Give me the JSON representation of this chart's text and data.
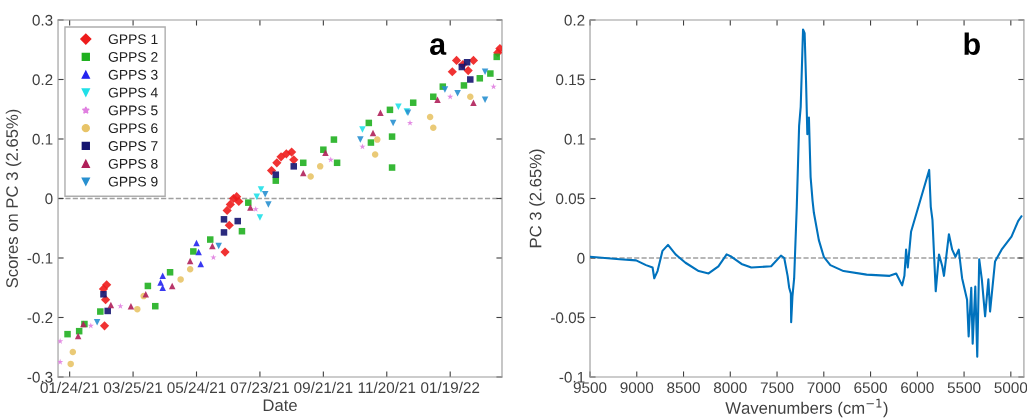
{
  "chart_data": [
    {
      "type": "scatter",
      "xlabel": "Date",
      "ylabel": "Scores on PC 3 (2.65%)",
      "annotations": [
        "a"
      ],
      "legend": "top left",
      "grid": false,
      "xlim": [
        "2021-01-13",
        "2022-03-09"
      ],
      "ylim": [
        -0.3,
        0.3
      ],
      "yticks": [
        -0.3,
        -0.2,
        -0.1,
        0,
        0.1,
        0.2,
        0.3
      ],
      "xticks": [
        {
          "value": "2021-01-24",
          "label": "01/24/21"
        },
        {
          "value": "2021-03-25",
          "label": "03/25/21"
        },
        {
          "value": "2021-05-24",
          "label": "05/24/21"
        },
        {
          "value": "2021-07-23",
          "label": "07/23/21"
        },
        {
          "value": "2021-09-21",
          "label": "09/21/21"
        },
        {
          "value": "2021-11-20",
          "label": "11/20/21"
        },
        {
          "value": "2022-01-19",
          "label": "01/19/22"
        }
      ],
      "ref_lines": [
        {
          "axis": "y",
          "value": 0,
          "color": "#a0a0a0",
          "line_style": "dashed"
        }
      ],
      "series": [
        {
          "name": "GPPS 1",
          "color": "#ee1c1c",
          "marker": "diamond",
          "x": [
            "2021-02-25",
            "2021-02-28",
            "2021-02-27",
            "2021-02-26",
            "2021-06-20",
            "2021-06-24",
            "2021-06-22",
            "2021-06-25",
            "2021-06-28",
            "2021-07-01",
            "2021-07-03",
            "2021-08-03",
            "2021-08-08",
            "2021-08-12",
            "2021-08-17",
            "2021-08-22",
            "2021-08-24",
            "2022-01-21",
            "2022-01-25",
            "2022-01-31",
            "2022-02-10",
            "2022-02-05",
            "2022-03-05",
            "2022-03-07"
          ],
          "values": [
            -0.152,
            -0.145,
            -0.17,
            -0.214,
            -0.09,
            -0.045,
            -0.02,
            -0.01,
            0.0,
            0.003,
            -0.005,
            0.047,
            0.06,
            0.07,
            0.075,
            0.078,
            0.065,
            0.213,
            0.232,
            0.225,
            0.232,
            0.215,
            0.245,
            0.252
          ]
        },
        {
          "name": "GPPS 2",
          "color": "#20b020",
          "marker": "square",
          "x": [
            "2021-01-22",
            "2021-02-02",
            "2021-02-07",
            "2021-02-22",
            "2021-04-08",
            "2021-04-15",
            "2021-04-29",
            "2021-05-21",
            "2021-06-06",
            "2021-07-06",
            "2021-07-12",
            "2021-08-07",
            "2021-09-02",
            "2021-09-21",
            "2021-10-01",
            "2021-10-04",
            "2021-11-03",
            "2021-11-05",
            "2021-11-23",
            "2021-11-25",
            "2021-11-25",
            "2021-12-15",
            "2022-01-03",
            "2022-01-12",
            "2022-02-01",
            "2022-02-16",
            "2022-02-26",
            "2022-03-04"
          ],
          "values": [
            -0.228,
            -0.223,
            -0.211,
            -0.19,
            -0.147,
            -0.181,
            -0.124,
            -0.089,
            -0.069,
            -0.055,
            -0.007,
            0.03,
            0.06,
            0.082,
            0.099,
            0.06,
            0.127,
            0.094,
            0.149,
            0.052,
            0.104,
            0.161,
            0.171,
            0.188,
            0.19,
            0.202,
            0.21,
            0.238
          ]
        },
        {
          "name": "GPPS 3",
          "color": "#2424f0",
          "marker": "triangle",
          "x": [
            "2021-04-22",
            "2021-04-22",
            "2021-04-20",
            "2021-05-24",
            "2021-05-26",
            "2021-05-28"
          ],
          "values": [
            -0.13,
            -0.15,
            -0.141,
            -0.075,
            -0.09,
            -0.11
          ]
        },
        {
          "name": "GPPS 4",
          "color": "#20e0e8",
          "marker": "triangle_down",
          "x": [
            "2021-07-23",
            "2021-07-20",
            "2021-07-24",
            "2021-10-28",
            "2021-12-01",
            "2021-12-09"
          ],
          "values": [
            -0.032,
            0.003,
            0.015,
            0.116,
            0.154,
            0.146
          ]
        },
        {
          "name": "GPPS 5",
          "color": "#e080e0",
          "marker": "star",
          "x": [
            "2021-01-15",
            "2021-01-15",
            "2021-02-13",
            "2021-03-13",
            "2021-06-09",
            "2021-07-19",
            "2021-09-28",
            "2021-10-28",
            "2021-12-12",
            "2022-01-19",
            "2022-03-01"
          ],
          "values": [
            -0.24,
            -0.275,
            -0.214,
            -0.181,
            -0.099,
            -0.018,
            0.065,
            0.087,
            0.127,
            0.171,
            0.188
          ]
        },
        {
          "name": "GPPS 6",
          "color": "#e8c468",
          "marker": "circle",
          "x": [
            "2021-01-27",
            "2021-01-25",
            "2021-03-29",
            "2021-04-04",
            "2021-05-09",
            "2021-05-18",
            "2021-09-09",
            "2021-09-18",
            "2021-11-11",
            "2021-11-09",
            "2021-12-31",
            "2022-01-03",
            "2022-02-07"
          ],
          "values": [
            -0.258,
            -0.278,
            -0.186,
            -0.164,
            -0.136,
            -0.119,
            0.037,
            0.054,
            0.099,
            0.074,
            0.137,
            0.119,
            0.171
          ]
        },
        {
          "name": "GPPS 7",
          "color": "#141470",
          "marker": "square",
          "x": [
            "2021-02-25",
            "2021-03-01",
            "2021-06-19",
            "2021-06-19",
            "2021-07-02",
            "2021-08-07",
            "2021-08-24",
            "2022-01-30",
            "2022-02-04",
            "2022-02-07"
          ],
          "values": [
            -0.161,
            -0.189,
            -0.035,
            -0.057,
            -0.038,
            0.04,
            0.054,
            0.221,
            0.229,
            0.2
          ]
        },
        {
          "name": "GPPS 8",
          "color": "#b0205a",
          "marker": "triangle",
          "x": [
            "2021-02-01",
            "2021-02-06",
            "2021-03-04",
            "2021-03-23",
            "2021-04-06",
            "2021-05-01",
            "2021-05-18",
            "2021-06-08",
            "2021-07-14",
            "2021-09-02",
            "2021-09-23",
            "2021-11-07",
            "2021-11-14",
            "2022-01-07",
            "2022-02-10"
          ],
          "values": [
            -0.231,
            -0.211,
            -0.179,
            -0.181,
            -0.161,
            -0.147,
            -0.105,
            -0.08,
            -0.015,
            0.043,
            0.077,
            0.11,
            0.144,
            0.166,
            0.161
          ]
        },
        {
          "name": "GPPS 9",
          "color": "#2890d0",
          "marker": "triangle_down",
          "x": [
            "2021-02-19",
            "2021-06-14",
            "2021-07-31",
            "2021-07-28",
            "2021-10-26",
            "2021-11-26",
            "2021-12-10",
            "2022-01-14",
            "2022-01-26",
            "2022-02-21",
            "2022-02-21"
          ],
          "values": [
            -0.208,
            -0.08,
            -0.01,
            0.007,
            0.099,
            0.127,
            0.144,
            0.183,
            0.177,
            0.166,
            0.213
          ]
        }
      ]
    },
    {
      "type": "line",
      "xlabel": "Wavenumbers (cm$^{−1}$)",
      "ylabel": "PC 3 (2.65%)",
      "annotations": [
        "b"
      ],
      "grid": false,
      "xlim": [
        9500,
        4860
      ],
      "xticks": [
        9500,
        9000,
        8500,
        8000,
        7500,
        7000,
        6500,
        6000,
        5500,
        5000
      ],
      "ylim": [
        -0.1,
        0.2
      ],
      "yticks": [
        -0.1,
        -0.05,
        0,
        0.05,
        0.1,
        0.15,
        0.2
      ],
      "ref_lines": [
        {
          "axis": "y",
          "value": 0,
          "color": "#a0a0a0",
          "line_style": "dashed"
        }
      ],
      "series": [
        {
          "color": "#0072bd",
          "line_style": "solid",
          "marker": "none",
          "x": [
            9500,
            9183,
            9007,
            8901,
            8831,
            8813,
            8778,
            8725,
            8666,
            8585,
            8479,
            8338,
            8232,
            8127,
            8039,
            7986,
            7880,
            7775,
            7563,
            7458,
            7423,
            7387,
            7370,
            7352,
            7349,
            7335,
            7317,
            7289,
            7264,
            7247,
            7222,
            7205,
            7190,
            7176,
            7159,
            7141,
            7120,
            7106,
            7053,
            7000,
            6930,
            6789,
            6542,
            6296,
            6226,
            6162,
            6138,
            6120,
            6102,
            6067,
            5873,
            5856,
            5838,
            5803,
            5768,
            5733,
            5715,
            5662,
            5627,
            5592,
            5557,
            5521,
            5468,
            5451,
            5423,
            5408,
            5380,
            5359,
            5338,
            5310,
            5275,
            5240,
            5222,
            5169,
            5099,
            4993,
            4922,
            4887
          ],
          "values": [
            0.001,
            -0.001,
            -0.002,
            -0.006,
            -0.008,
            -0.017,
            -0.011,
            0.006,
            0.011,
            0.003,
            -0.004,
            -0.011,
            -0.013,
            -0.007,
            0.003,
            0.001,
            -0.005,
            -0.008,
            -0.007,
            0.002,
            0.0,
            -0.015,
            -0.025,
            -0.03,
            -0.054,
            -0.032,
            -0.017,
            0.043,
            0.111,
            0.127,
            0.192,
            0.189,
            0.149,
            0.104,
            0.118,
            0.068,
            0.048,
            0.038,
            0.015,
            0.001,
            -0.006,
            -0.011,
            -0.014,
            -0.015,
            -0.013,
            -0.023,
            -0.015,
            0.007,
            -0.008,
            0.022,
            0.074,
            0.043,
            0.032,
            -0.028,
            0.003,
            -0.007,
            -0.015,
            0.02,
            0.007,
            0.001,
            0.007,
            -0.017,
            -0.035,
            -0.066,
            -0.025,
            -0.072,
            -0.024,
            -0.083,
            -0.001,
            -0.018,
            -0.049,
            -0.018,
            -0.045,
            -0.003,
            0.007,
            0.018,
            0.031,
            0.035
          ]
        }
      ]
    }
  ]
}
